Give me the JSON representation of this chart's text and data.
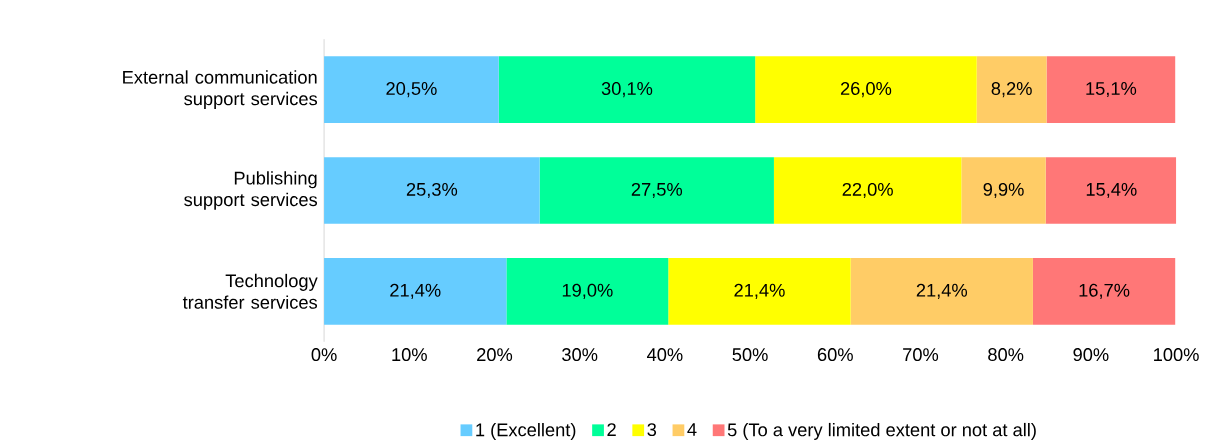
{
  "chart_data": {
    "type": "bar",
    "orientation": "horizontal",
    "stacked": true,
    "categories": [
      "External communication support services",
      "Publishing support services",
      "Technology transfer services"
    ],
    "series": [
      {
        "name": "1 (Excellent)",
        "color": "#66ccff",
        "values": [
          20.5,
          25.3,
          21.4
        ],
        "value_labels": [
          "20,5%",
          "25,3%",
          "21,4%"
        ]
      },
      {
        "name": "2",
        "color": "#00ff99",
        "values": [
          30.1,
          27.5,
          19.0
        ],
        "value_labels": [
          "30,1%",
          "27,5%",
          "19,0%"
        ]
      },
      {
        "name": "3",
        "color": "#ffff00",
        "values": [
          26.0,
          22.0,
          21.4
        ],
        "value_labels": [
          "26,0%",
          "22,0%",
          "21,4%"
        ]
      },
      {
        "name": "4",
        "color": "#ffcc66",
        "values": [
          8.2,
          9.9,
          21.4
        ],
        "value_labels": [
          "8,2%",
          "9,9%",
          "21,4%"
        ]
      },
      {
        "name": "5 (To a very limited extent or not at all)",
        "color": "#ff7777",
        "values": [
          15.1,
          15.4,
          16.7
        ],
        "value_labels": [
          "15,1%",
          "15,4%",
          "16,7%"
        ]
      }
    ],
    "xlim": [
      0,
      100
    ],
    "xticks": [
      {
        "value": 0,
        "label": "0%"
      },
      {
        "value": 10,
        "label": "10%"
      },
      {
        "value": 20,
        "label": "20%"
      },
      {
        "value": 30,
        "label": "30%"
      },
      {
        "value": 40,
        "label": "40%"
      },
      {
        "value": 50,
        "label": "50%"
      },
      {
        "value": 60,
        "label": "60%"
      },
      {
        "value": 70,
        "label": "70%"
      },
      {
        "value": 80,
        "label": "80%"
      },
      {
        "value": 90,
        "label": "90%"
      },
      {
        "value": 100,
        "label": "100%"
      }
    ],
    "legend": "bottom",
    "grid": false
  }
}
